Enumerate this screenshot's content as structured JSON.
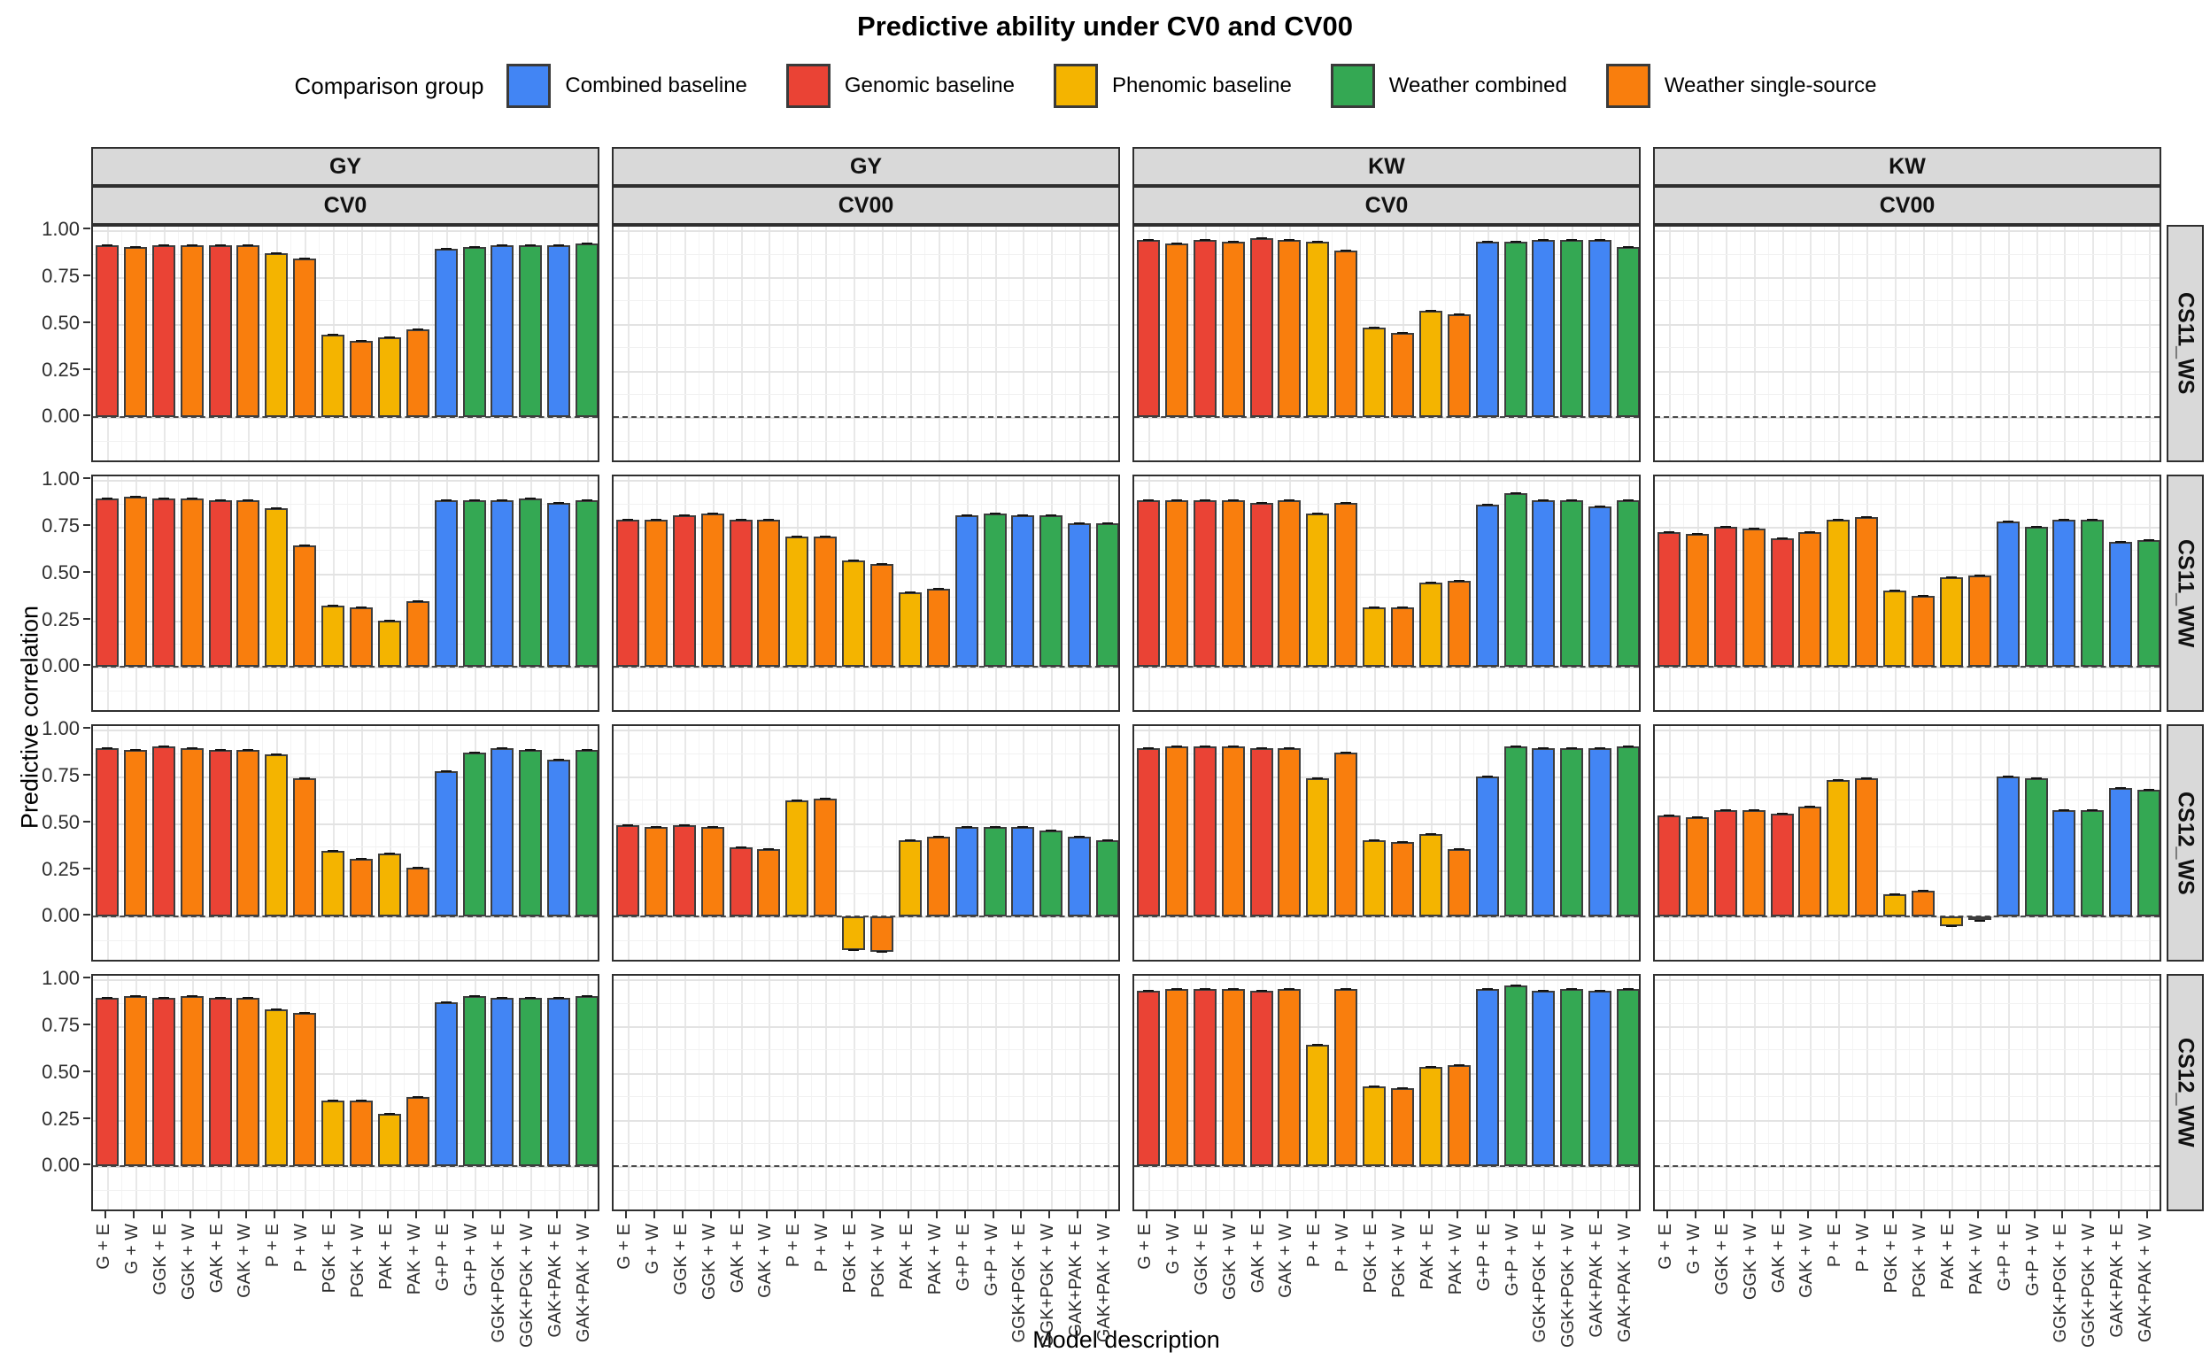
{
  "title": "Predictive ability under CV0 and CV00",
  "legend": {
    "title": "Comparison group",
    "items": [
      {
        "label": "Combined baseline",
        "key": "combined"
      },
      {
        "label": "Genomic baseline",
        "key": "genomic"
      },
      {
        "label": "Phenomic baseline",
        "key": "phenomic"
      },
      {
        "label": "Weather combined",
        "key": "weather_combined"
      },
      {
        "label": "Weather single-source",
        "key": "weather_single"
      }
    ]
  },
  "axes": {
    "y_title": "Predictive correlation",
    "x_title": "Model description",
    "y_tick_labels": [
      "1.00",
      "0.75",
      "0.50",
      "0.25",
      "0.00"
    ],
    "y_tick_values": [
      1.0,
      0.75,
      0.5,
      0.25,
      0.0
    ]
  },
  "chart_data": {
    "type": "bar",
    "title": "Predictive ability under CV0 and CV00",
    "x_categories": [
      "G + E",
      "G + W",
      "GGK + E",
      "GGK + W",
      "GAK + E",
      "GAK + W",
      "P + E",
      "P + W",
      "PGK + E",
      "PGK + W",
      "PAK + E",
      "PAK + W",
      "G+P + E",
      "G+P + W",
      "GGK+PGK + E",
      "GGK+PGK + W",
      "GAK+PAK + E",
      "GAK+PAK + W"
    ],
    "bar_groups": [
      "genomic",
      "weather_single",
      "genomic",
      "weather_single",
      "genomic",
      "weather_single",
      "phenomic",
      "weather_single",
      "phenomic",
      "weather_single",
      "phenomic",
      "weather_single",
      "combined",
      "weather_combined",
      "combined",
      "weather_combined",
      "combined",
      "weather_combined"
    ],
    "group_colors": {
      "combined": "#4285F4",
      "genomic": "#EA4335",
      "phenomic": "#F4B400",
      "weather_combined": "#34A853",
      "weather_single": "#F97E0D"
    },
    "facet_cols": [
      {
        "trait": "GY",
        "cv": "CV0"
      },
      {
        "trait": "GY",
        "cv": "CV00"
      },
      {
        "trait": "KW",
        "cv": "CV0"
      },
      {
        "trait": "KW",
        "cv": "CV00"
      }
    ],
    "facet_rows": [
      "CS11_WS",
      "CS11_WW",
      "CS12_WS",
      "CS12_WW"
    ],
    "y_axis_range_shown": [
      -0.25,
      1.02
    ],
    "zero_reference_line": "dashed",
    "panels": [
      {
        "row": "CS11_WS",
        "cells": [
          {
            "col": "GY CV0",
            "values": [
              0.92,
              0.91,
              0.92,
              0.92,
              0.92,
              0.92,
              0.88,
              0.85,
              0.44,
              0.41,
              0.43,
              0.47,
              0.9,
              0.91,
              0.92,
              0.92,
              0.92,
              0.93
            ]
          },
          {
            "col": "GY CV00",
            "values": null
          },
          {
            "col": "KW CV0",
            "values": [
              0.95,
              0.93,
              0.95,
              0.94,
              0.96,
              0.95,
              0.94,
              0.89,
              0.48,
              0.45,
              0.57,
              0.55,
              0.94,
              0.94,
              0.95,
              0.95,
              0.95,
              0.91
            ]
          },
          {
            "col": "KW CV00",
            "values": null
          }
        ]
      },
      {
        "row": "CS11_WW",
        "cells": [
          {
            "col": "GY CV0",
            "values": [
              0.9,
              0.91,
              0.9,
              0.9,
              0.89,
              0.89,
              0.85,
              0.65,
              0.33,
              0.32,
              0.25,
              0.35,
              0.89,
              0.89,
              0.89,
              0.9,
              0.88,
              0.89
            ]
          },
          {
            "col": "GY CV00",
            "values": [
              0.79,
              0.79,
              0.81,
              0.82,
              0.79,
              0.79,
              0.7,
              0.7,
              0.57,
              0.55,
              0.4,
              0.42,
              0.81,
              0.82,
              0.81,
              0.81,
              0.77,
              0.77
            ]
          },
          {
            "col": "KW CV0",
            "values": [
              0.89,
              0.89,
              0.89,
              0.89,
              0.88,
              0.89,
              0.82,
              0.88,
              0.32,
              0.32,
              0.45,
              0.46,
              0.87,
              0.93,
              0.89,
              0.89,
              0.86,
              0.89
            ]
          },
          {
            "col": "KW CV00",
            "values": [
              0.72,
              0.71,
              0.75,
              0.74,
              0.69,
              0.72,
              0.79,
              0.8,
              0.41,
              0.38,
              0.48,
              0.49,
              0.78,
              0.75,
              0.79,
              0.79,
              0.67,
              0.68
            ]
          }
        ]
      },
      {
        "row": "CS12_WS",
        "cells": [
          {
            "col": "GY CV0",
            "values": [
              0.9,
              0.89,
              0.91,
              0.9,
              0.89,
              0.89,
              0.87,
              0.74,
              0.35,
              0.31,
              0.34,
              0.26,
              0.78,
              0.88,
              0.9,
              0.89,
              0.84,
              0.89
            ]
          },
          {
            "col": "GY CV00",
            "values": [
              0.49,
              0.48,
              0.49,
              0.48,
              0.37,
              0.36,
              0.62,
              0.63,
              -0.18,
              -0.19,
              0.41,
              0.43,
              0.48,
              0.48,
              0.48,
              0.46,
              0.43,
              0.41
            ]
          },
          {
            "col": "KW CV0",
            "values": [
              0.9,
              0.91,
              0.91,
              0.91,
              0.9,
              0.9,
              0.74,
              0.88,
              0.41,
              0.4,
              0.44,
              0.36,
              0.75,
              0.91,
              0.9,
              0.9,
              0.9,
              0.91
            ]
          },
          {
            "col": "KW CV00",
            "values": [
              0.54,
              0.53,
              0.57,
              0.57,
              0.55,
              0.59,
              0.73,
              0.74,
              0.12,
              0.14,
              -0.05,
              -0.02,
              0.75,
              0.74,
              0.57,
              0.57,
              0.69,
              0.68
            ]
          }
        ]
      },
      {
        "row": "CS12_WW",
        "cells": [
          {
            "col": "GY CV0",
            "values": [
              0.9,
              0.91,
              0.9,
              0.91,
              0.9,
              0.9,
              0.84,
              0.82,
              0.35,
              0.35,
              0.28,
              0.37,
              0.88,
              0.91,
              0.9,
              0.9,
              0.9,
              0.91
            ]
          },
          {
            "col": "GY CV00",
            "values": null
          },
          {
            "col": "KW CV0",
            "values": [
              0.94,
              0.95,
              0.95,
              0.95,
              0.94,
              0.95,
              0.65,
              0.95,
              0.43,
              0.42,
              0.53,
              0.54,
              0.95,
              0.97,
              0.94,
              0.95,
              0.94,
              0.95
            ]
          },
          {
            "col": "KW CV00",
            "values": null
          }
        ]
      }
    ]
  }
}
